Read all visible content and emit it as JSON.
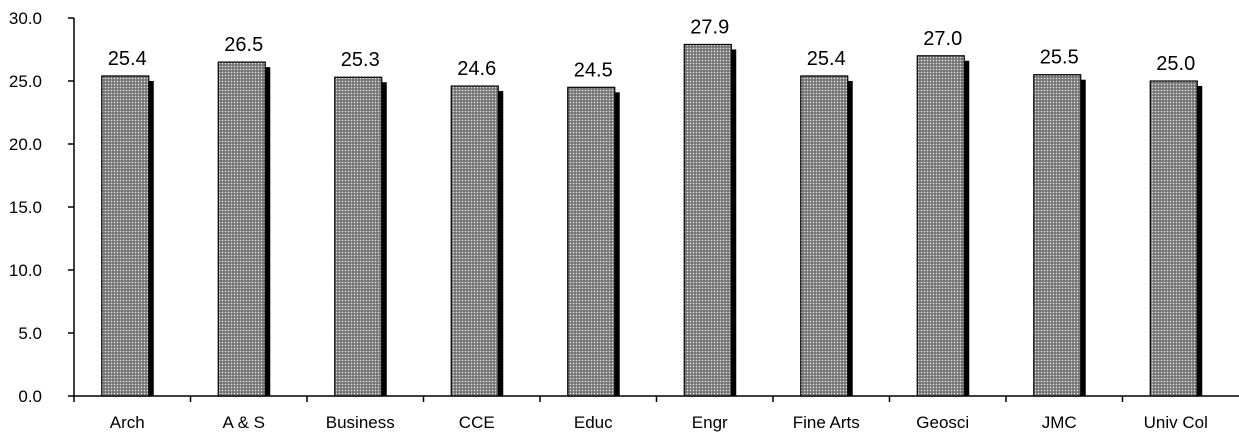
{
  "chart_data": {
    "type": "bar",
    "categories": [
      "Arch",
      "A & S",
      "Business",
      "CCE",
      "Educ",
      "Engr",
      "Fine Arts",
      "Geosci",
      "JMC",
      "Univ Col"
    ],
    "values": [
      25.4,
      26.5,
      25.3,
      24.6,
      24.5,
      27.9,
      25.4,
      27.0,
      25.5,
      25.0
    ],
    "data_labels": [
      "25.4",
      "26.5",
      "25.3",
      "24.6",
      "24.5",
      "27.9",
      "25.4",
      "27.0",
      "25.5",
      "25.0"
    ],
    "yticks": [
      "0.0",
      "5.0",
      "10.0",
      "15.0",
      "20.0",
      "25.0",
      "30.0"
    ],
    "ytick_values": [
      0,
      5,
      10,
      15,
      20,
      25,
      30
    ],
    "ylim": [
      0,
      30
    ],
    "title": "",
    "xlabel": "",
    "ylabel": "",
    "grid": false,
    "legend": "none",
    "colors": {
      "bar_fill": "#8a8a8a",
      "bar_shadow": "#000000",
      "axis": "#000000"
    }
  }
}
